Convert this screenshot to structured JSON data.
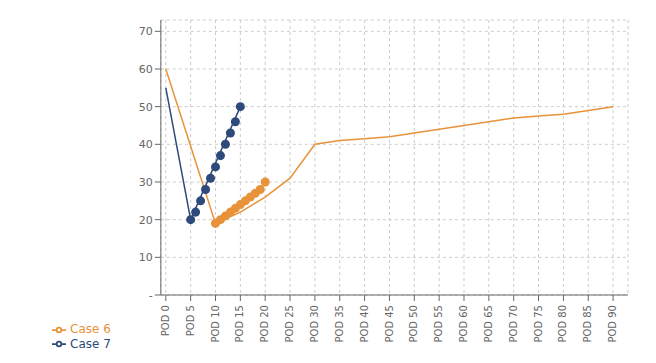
{
  "chart_data": {
    "type": "line",
    "xlim": [
      -1,
      93
    ],
    "xticks": [
      {
        "value": 0,
        "label": "POD 0"
      },
      {
        "value": 5,
        "label": "POD 5"
      },
      {
        "value": 10,
        "label": "POD 10"
      },
      {
        "value": 15,
        "label": "POD 15"
      },
      {
        "value": 20,
        "label": "POD 20"
      },
      {
        "value": 25,
        "label": "POD 25"
      },
      {
        "value": 30,
        "label": "POD 30"
      },
      {
        "value": 35,
        "label": "POD 35"
      },
      {
        "value": 40,
        "label": "POD 40"
      },
      {
        "value": 45,
        "label": "POD 45"
      },
      {
        "value": 50,
        "label": "POD 50"
      },
      {
        "value": 55,
        "label": "POD 55"
      },
      {
        "value": 60,
        "label": "POD 60"
      },
      {
        "value": 65,
        "label": "POD 65"
      },
      {
        "value": 70,
        "label": "POD 70"
      },
      {
        "value": 75,
        "label": "POD 75"
      },
      {
        "value": 80,
        "label": "POD 80"
      },
      {
        "value": 85,
        "label": "POD 85"
      },
      {
        "value": 90,
        "label": "POD 90"
      }
    ],
    "ylim": [
      0,
      73
    ],
    "yticks": [
      {
        "value": 0,
        "label": "-"
      },
      10,
      20,
      30,
      40,
      50,
      60,
      70
    ],
    "grid": true,
    "legend": "bottom",
    "series": [
      {
        "name": "Case 6",
        "color": "#E8923A",
        "x": [
          0,
          10,
          15,
          20,
          25,
          30,
          35,
          40,
          45,
          50,
          55,
          60,
          65,
          70,
          75,
          80,
          85,
          90
        ],
        "values": [
          60,
          19,
          22,
          26,
          31,
          40,
          41,
          41.5,
          42,
          43,
          44,
          45,
          46,
          47,
          47.5,
          48,
          49,
          50
        ],
        "dot_x": [
          10,
          11,
          12,
          13,
          14,
          15,
          16,
          17,
          18,
          19,
          20
        ],
        "dot_values": [
          19,
          20,
          21,
          22,
          23,
          24,
          25,
          26,
          27,
          28,
          30
        ]
      },
      {
        "name": "Case 7",
        "color": "#2E4A7A",
        "x": [
          0,
          5,
          10,
          15
        ],
        "values": [
          55,
          20,
          35,
          50
        ],
        "dot_x": [
          5,
          6,
          7,
          8,
          9,
          10,
          11,
          12,
          13,
          14,
          15
        ],
        "dot_values": [
          20,
          22,
          25,
          28,
          31,
          34,
          37,
          40,
          43,
          46,
          50
        ]
      }
    ]
  }
}
